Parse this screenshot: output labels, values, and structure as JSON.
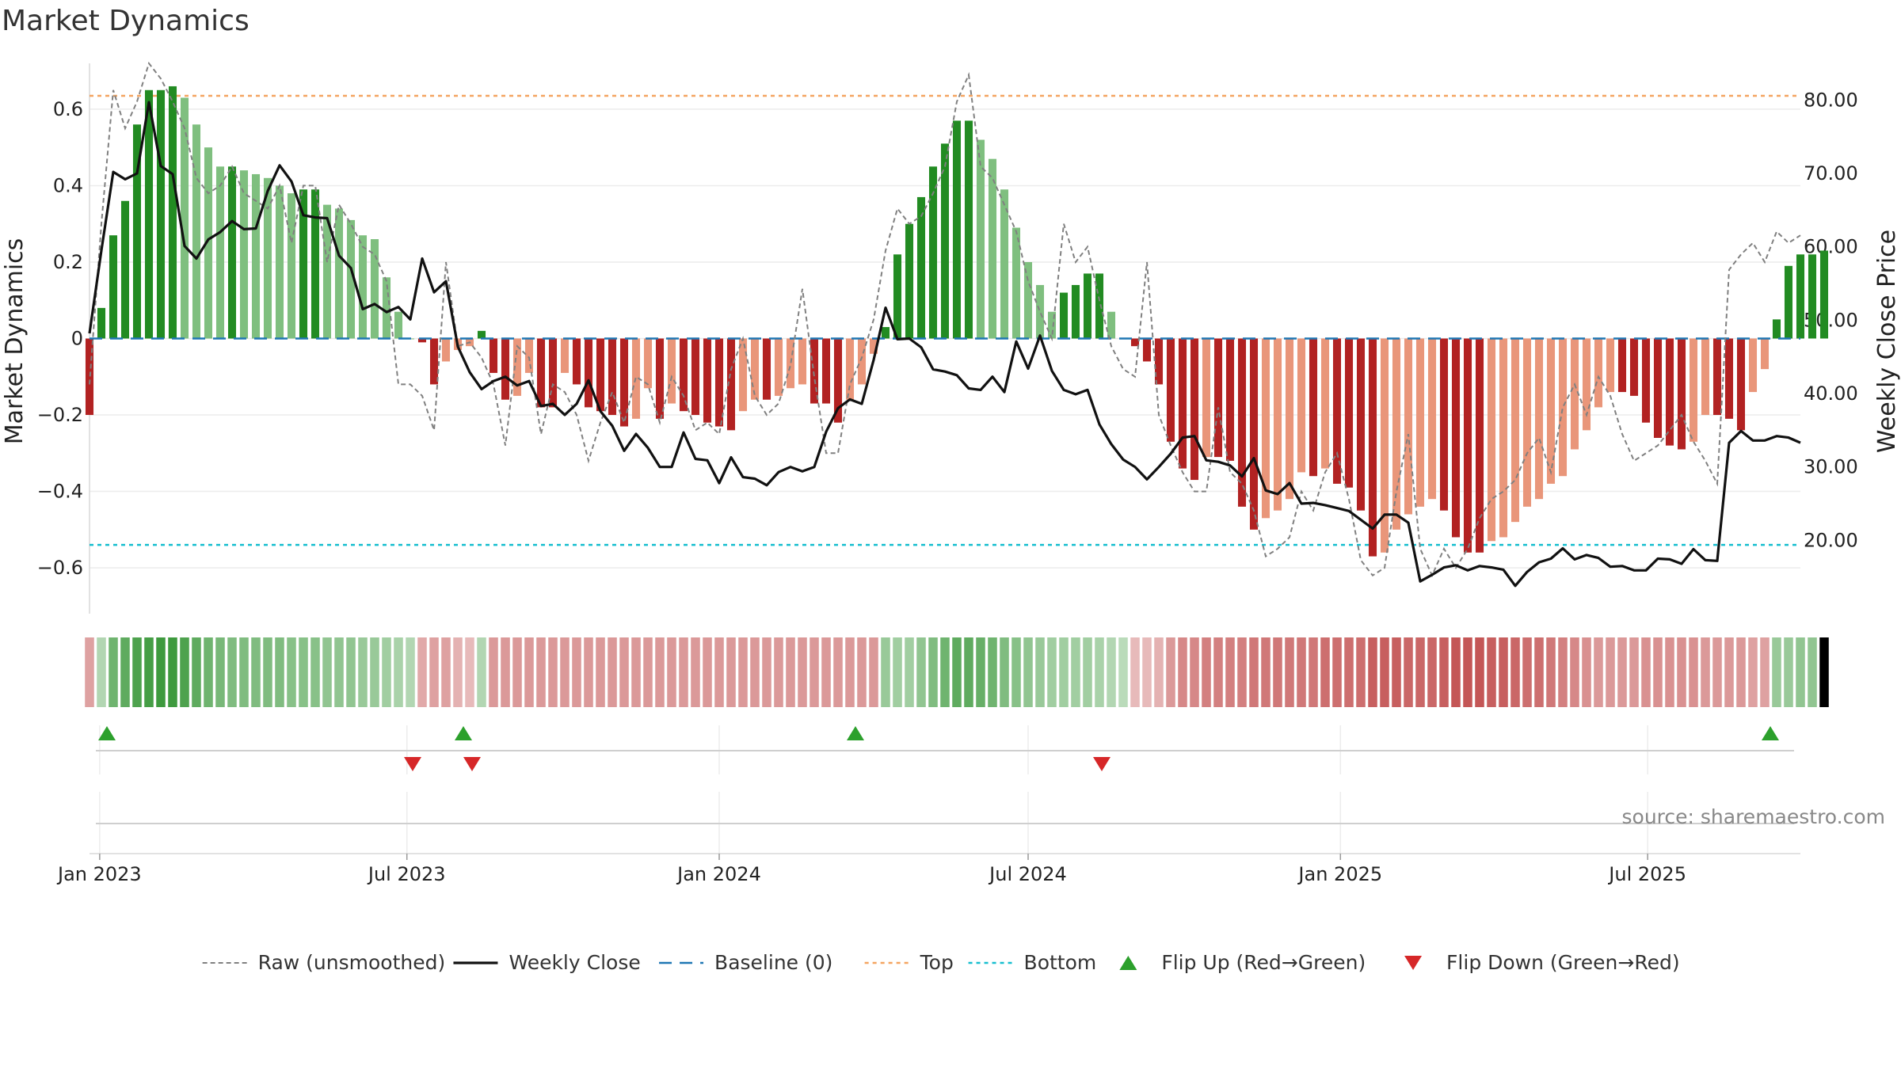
{
  "chart_data": {
    "type": "bar",
    "title": "Market Dynamics",
    "ylabel": "Market Dynamics",
    "ylabel_right": "Weekly Close Price",
    "ylim": [
      -0.72,
      0.72
    ],
    "ylim_right": [
      10,
      85
    ],
    "yticks": [
      -0.6,
      -0.4,
      -0.2,
      0,
      0.2,
      0.4,
      0.6
    ],
    "ytick_labels": [
      "−0.6",
      "−0.4",
      "−0.2",
      "0",
      "0.2",
      "0.4",
      "0.6"
    ],
    "yticks_right": [
      20,
      30,
      40,
      50,
      60,
      70,
      80
    ],
    "ytick_labels_right": [
      "20.00",
      "30.00",
      "40.00",
      "50.00",
      "60.00",
      "70.00",
      "80.00"
    ],
    "x_start": "2022-12-26",
    "x_end": "2025-09-29",
    "xticks": [
      "2023-01-01",
      "2023-07-01",
      "2024-01-01",
      "2024-07-01",
      "2025-01-01",
      "2025-07-01"
    ],
    "xtick_labels": [
      "Jan 2023",
      "Jul 2023",
      "Jan 2024",
      "Jul 2024",
      "Jan 2025",
      "Jul 2025"
    ],
    "top_level": 0.635,
    "bottom_level": -0.54,
    "baseline": 0,
    "colors": {
      "strong_up": "#228B22",
      "weak_up": "#7fbf7f",
      "strong_down": "#b22222",
      "weak_down": "#e9967a",
      "raw": "#808080",
      "close": "#111111",
      "baseline": "#1f77b4",
      "top": "#f4a460",
      "bottom": "#17becf",
      "flip_up": "#2ca02c",
      "flip_down": "#d62728"
    },
    "market_dynamics": [
      -0.2,
      0.08,
      0.27,
      0.36,
      0.56,
      0.65,
      0.65,
      0.66,
      0.63,
      0.56,
      0.5,
      0.45,
      0.45,
      0.44,
      0.43,
      0.42,
      0.4,
      0.38,
      0.39,
      0.39,
      0.35,
      0.34,
      0.31,
      0.27,
      0.26,
      0.16,
      0.07,
      0,
      -0.01,
      -0.12,
      -0.06,
      -0.03,
      -0.02,
      0.02,
      -0.09,
      -0.16,
      -0.15,
      -0.09,
      -0.18,
      -0.18,
      -0.09,
      -0.12,
      -0.18,
      -0.19,
      -0.2,
      -0.23,
      -0.21,
      -0.13,
      -0.21,
      -0.17,
      -0.19,
      -0.2,
      -0.22,
      -0.23,
      -0.24,
      -0.19,
      -0.16,
      -0.16,
      -0.15,
      -0.13,
      -0.12,
      -0.17,
      -0.17,
      -0.22,
      -0.16,
      -0.12,
      -0.04,
      0.03,
      0.22,
      0.3,
      0.37,
      0.45,
      0.51,
      0.57,
      0.57,
      0.52,
      0.47,
      0.39,
      0.29,
      0.2,
      0.14,
      0.07,
      0.12,
      0.14,
      0.17,
      0.17,
      0.07,
      0,
      -0.02,
      -0.06,
      -0.12,
      -0.27,
      -0.34,
      -0.37,
      -0.31,
      -0.31,
      -0.32,
      -0.44,
      -0.5,
      -0.47,
      -0.45,
      -0.42,
      -0.35,
      -0.36,
      -0.34,
      -0.38,
      -0.39,
      -0.45,
      -0.57,
      -0.56,
      -0.5,
      -0.46,
      -0.44,
      -0.42,
      -0.45,
      -0.52,
      -0.56,
      -0.56,
      -0.53,
      -0.52,
      -0.48,
      -0.44,
      -0.42,
      -0.38,
      -0.36,
      -0.29,
      -0.24,
      -0.18,
      -0.14,
      -0.14,
      -0.15,
      -0.22,
      -0.26,
      -0.28,
      -0.29,
      -0.27,
      -0.2,
      -0.2,
      -0.21,
      -0.24,
      -0.14,
      -0.08,
      0.05,
      0.19,
      0.22,
      0.22,
      0.23
    ],
    "raw": [
      -0.12,
      0.3,
      0.65,
      0.55,
      0.62,
      0.72,
      0.68,
      0.62,
      0.55,
      0.42,
      0.38,
      0.4,
      0.45,
      0.38,
      0.36,
      0.34,
      0.4,
      0.25,
      0.4,
      0.4,
      0.2,
      0.35,
      0.3,
      0.24,
      0.22,
      0.15,
      -0.12,
      -0.12,
      -0.15,
      -0.24,
      0.2,
      -0.02,
      -0.01,
      -0.05,
      -0.12,
      -0.28,
      -0.02,
      -0.05,
      -0.25,
      -0.12,
      -0.14,
      -0.2,
      -0.32,
      -0.22,
      -0.14,
      -0.22,
      -0.1,
      -0.12,
      -0.22,
      -0.1,
      -0.15,
      -0.24,
      -0.22,
      -0.25,
      -0.08,
      0.0,
      -0.15,
      -0.2,
      -0.17,
      -0.07,
      0.13,
      -0.1,
      -0.3,
      -0.3,
      -0.12,
      -0.05,
      0.05,
      0.23,
      0.34,
      0.3,
      0.32,
      0.38,
      0.45,
      0.62,
      0.69,
      0.45,
      0.42,
      0.35,
      0.28,
      0.15,
      0.07,
      0.0,
      0.3,
      0.2,
      0.24,
      0.1,
      -0.02,
      -0.08,
      -0.1,
      0.2,
      -0.2,
      -0.28,
      -0.35,
      -0.4,
      -0.4,
      -0.18,
      -0.35,
      -0.38,
      -0.45,
      -0.57,
      -0.55,
      -0.52,
      -0.4,
      -0.45,
      -0.35,
      -0.3,
      -0.42,
      -0.58,
      -0.62,
      -0.6,
      -0.4,
      -0.25,
      -0.55,
      -0.62,
      -0.55,
      -0.6,
      -0.55,
      -0.47,
      -0.42,
      -0.4,
      -0.37,
      -0.3,
      -0.26,
      -0.35,
      -0.18,
      -0.12,
      -0.2,
      -0.1,
      -0.15,
      -0.25,
      -0.32,
      -0.3,
      -0.28,
      -0.24,
      -0.2,
      -0.27,
      -0.32,
      -0.38,
      0.18,
      0.22,
      0.25,
      0.2,
      0.28,
      0.25,
      0.27
    ],
    "weekly_close": [
      48.2,
      59.5,
      70.2,
      69.2,
      70.0,
      79.7,
      71.0,
      69.9,
      60.1,
      58.4,
      61.0,
      62.0,
      63.5,
      62.4,
      62.5,
      67.6,
      71.1,
      68.9,
      64.3,
      64.0,
      63.9,
      58.8,
      57.1,
      51.5,
      52.2,
      51.1,
      51.8,
      50.1,
      58.4,
      53.8,
      55.3,
      46.4,
      42.9,
      40.6,
      41.7,
      42.3,
      41.1,
      41.7,
      38.3,
      38.6,
      37.1,
      38.6,
      41.8,
      37.6,
      35.6,
      32.2,
      34.5,
      32.6,
      30.0,
      30.0,
      34.7,
      31.1,
      30.9,
      27.8,
      31.3,
      28.6,
      28.4,
      27.5,
      29.3,
      30.0,
      29.4,
      30.0,
      34.8,
      38.0,
      39.2,
      38.6,
      44.6,
      51.7,
      47.4,
      47.5,
      46.3,
      43.3,
      43.0,
      42.5,
      40.7,
      40.5,
      42.3,
      40.2,
      47.1,
      43.4,
      47.9,
      43.1,
      40.5,
      39.9,
      40.5,
      35.8,
      33.1,
      31.0,
      30.0,
      28.3,
      30.0,
      31.8,
      34.0,
      34.2,
      30.9,
      30.7,
      30.2,
      28.7,
      31.2,
      26.8,
      26.3,
      27.8,
      25.0,
      25.1,
      24.8,
      24.4,
      24.0,
      22.8,
      21.6,
      23.5,
      23.5,
      22.4,
      14.4,
      15.3,
      16.3,
      16.6,
      15.9,
      16.5,
      16.3,
      16.0,
      13.8,
      15.7,
      17.0,
      17.5,
      18.9,
      17.4,
      18.0,
      17.6,
      16.4,
      16.5,
      15.9,
      15.9,
      17.5,
      17.4,
      16.8,
      18.8,
      17.3,
      17.2,
      33.3,
      34.9,
      33.6,
      33.6,
      34.2,
      34.0,
      33.3
    ],
    "regime_strength": [
      0.3,
      0.2,
      0.6,
      0.7,
      0.8,
      0.85,
      0.9,
      0.9,
      0.8,
      0.7,
      0.6,
      0.55,
      0.5,
      0.5,
      0.5,
      0.5,
      0.5,
      0.45,
      0.45,
      0.45,
      0.4,
      0.4,
      0.4,
      0.35,
      0.35,
      0.3,
      0.25,
      0.2,
      0.25,
      0.3,
      0.3,
      0.2,
      0.15,
      0.2,
      0.35,
      0.35,
      0.35,
      0.35,
      0.35,
      0.35,
      0.35,
      0.35,
      0.35,
      0.35,
      0.35,
      0.35,
      0.35,
      0.35,
      0.35,
      0.35,
      0.35,
      0.35,
      0.35,
      0.35,
      0.35,
      0.35,
      0.35,
      0.35,
      0.35,
      0.35,
      0.35,
      0.35,
      0.35,
      0.35,
      0.35,
      0.35,
      0.35,
      0.35,
      0.3,
      0.3,
      0.4,
      0.5,
      0.6,
      0.7,
      0.7,
      0.65,
      0.6,
      0.5,
      0.45,
      0.4,
      0.35,
      0.3,
      0.3,
      0.3,
      0.3,
      0.25,
      0.2,
      0.15,
      0.15,
      0.15,
      0.2,
      0.35,
      0.45,
      0.45,
      0.5,
      0.5,
      0.5,
      0.5,
      0.55,
      0.55,
      0.55,
      0.55,
      0.55,
      0.55,
      0.6,
      0.6,
      0.6,
      0.6,
      0.7,
      0.7,
      0.7,
      0.65,
      0.65,
      0.65,
      0.7,
      0.75,
      0.75,
      0.75,
      0.7,
      0.7,
      0.65,
      0.6,
      0.6,
      0.55,
      0.5,
      0.45,
      0.4,
      0.35,
      0.35,
      0.35,
      0.35,
      0.4,
      0.4,
      0.4,
      0.4,
      0.4,
      0.35,
      0.35,
      0.35,
      0.35,
      0.3,
      0.3,
      0.35,
      0.35,
      0.4,
      0.4
    ],
    "flip_up": [
      "2022-12-26",
      "2023-07-24",
      "2024-03-11",
      "2025-09-01"
    ],
    "flip_down": [
      "2023-06-26",
      "2023-07-31",
      "2024-08-05"
    ],
    "legend": [
      {
        "label": "Raw (unsmoothed)",
        "style": "raw"
      },
      {
        "label": "Weekly Close",
        "style": "close"
      },
      {
        "label": "Baseline (0)",
        "style": "baseline"
      },
      {
        "label": "Top",
        "style": "top"
      },
      {
        "label": "Bottom",
        "style": "bottom"
      },
      {
        "label": "Flip Up (Red→Green)",
        "style": "flip_up"
      },
      {
        "label": "Flip Down (Green→Red)",
        "style": "flip_down"
      }
    ],
    "legend_position": "bottom-center",
    "grid": true,
    "source": "source: sharemaestro.com"
  }
}
